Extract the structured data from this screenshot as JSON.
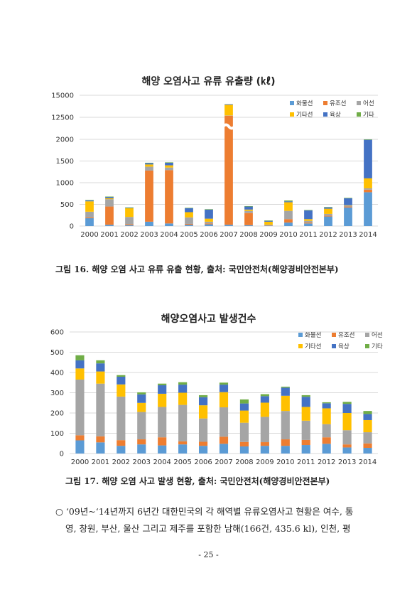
{
  "chart_data": [
    {
      "type": "bar",
      "stacked": true,
      "title": "해양 오염사고 유류 유출량 (㎘)",
      "categories": [
        "2000",
        "2001",
        "2002",
        "2003",
        "2004",
        "2005",
        "2006",
        "2007",
        "2008",
        "2009",
        "2010",
        "2011",
        "2012",
        "2013",
        "2014"
      ],
      "ylim": [
        0,
        15000
      ],
      "y_ticks": [
        0,
        500,
        1000,
        1500,
        2000,
        12500,
        15000
      ],
      "y_tick_labels": [
        "0",
        "500",
        "1000",
        "1500",
        "2000",
        "12500",
        "15000"
      ],
      "axis_break": {
        "between": [
          2000,
          12500
        ]
      },
      "grid": true,
      "legend_position": "top-right",
      "series": [
        {
          "name": "화물선",
          "color": "#5b9bd5",
          "values": [
            180,
            30,
            20,
            100,
            60,
            30,
            40,
            30,
            20,
            10,
            80,
            60,
            220,
            430,
            780
          ]
        },
        {
          "name": "유조선",
          "color": "#ed7d31",
          "values": [
            20,
            420,
            20,
            1180,
            1230,
            20,
            20,
            12650,
            280,
            10,
            80,
            20,
            20,
            20,
            60
          ]
        },
        {
          "name": "어선",
          "color": "#a5a5a5",
          "values": [
            130,
            170,
            170,
            90,
            60,
            150,
            40,
            30,
            50,
            10,
            190,
            40,
            40,
            20,
            30
          ]
        },
        {
          "name": "기타선",
          "color": "#ffc000",
          "values": [
            240,
            20,
            200,
            50,
            50,
            120,
            70,
            1200,
            30,
            70,
            200,
            40,
            120,
            10,
            230
          ]
        },
        {
          "name": "육상",
          "color": "#4472c4",
          "values": [
            20,
            30,
            10,
            30,
            60,
            90,
            210,
            70,
            70,
            20,
            20,
            200,
            30,
            160,
            890
          ]
        },
        {
          "name": "기타",
          "color": "#70ad47",
          "values": [
            10,
            10,
            10,
            10,
            10,
            10,
            10,
            10,
            10,
            10,
            20,
            10,
            10,
            10,
            10
          ]
        }
      ]
    },
    {
      "type": "bar",
      "stacked": true,
      "title": "해양오염사고 발생건수",
      "categories": [
        "2000",
        "2001",
        "2002",
        "2003",
        "2004",
        "2005",
        "2006",
        "2007",
        "2008",
        "2009",
        "2010",
        "2011",
        "2012",
        "2013",
        "2014"
      ],
      "ylim": [
        0,
        600
      ],
      "y_ticks": [
        0,
        100,
        200,
        300,
        400,
        500,
        600
      ],
      "y_tick_labels": [
        "0",
        "100",
        "200",
        "300",
        "400",
        "500",
        "600"
      ],
      "grid": true,
      "legend_position": "top-right",
      "series": [
        {
          "name": "화물선",
          "color": "#5b9bd5",
          "values": [
            65,
            55,
            38,
            45,
            40,
            45,
            38,
            48,
            35,
            38,
            38,
            42,
            48,
            30,
            28
          ]
        },
        {
          "name": "유조선",
          "color": "#ed7d31",
          "values": [
            25,
            30,
            28,
            25,
            40,
            15,
            20,
            35,
            22,
            18,
            32,
            25,
            32,
            15,
            22
          ]
        },
        {
          "name": "어선",
          "color": "#a5a5a5",
          "values": [
            275,
            260,
            215,
            135,
            150,
            180,
            115,
            145,
            95,
            125,
            140,
            95,
            65,
            70,
            55
          ]
        },
        {
          "name": "기타선",
          "color": "#ffc000",
          "values": [
            55,
            60,
            60,
            45,
            65,
            60,
            65,
            75,
            60,
            70,
            75,
            68,
            78,
            85,
            60
          ]
        },
        {
          "name": "육상",
          "color": "#4472c4",
          "values": [
            40,
            40,
            38,
            42,
            42,
            40,
            40,
            37,
            35,
            32,
            40,
            50,
            25,
            45,
            30
          ]
        },
        {
          "name": "기타",
          "color": "#70ad47",
          "values": [
            25,
            15,
            8,
            10,
            8,
            12,
            10,
            10,
            20,
            10,
            5,
            8,
            5,
            10,
            15
          ]
        }
      ]
    }
  ],
  "captions": {
    "figure16": "그림 16. 해양 오염 사고 유류 유출 현황, 출처: 국민안전처(해양경비안전본부)",
    "figure17": "그림 17. 해양 오염 사고 발생 현황, 출처: 국민안전처(해양경비안전본부)"
  },
  "body": {
    "bullet": "○",
    "line1": "‘09년~‘14년까지 6년간 대한민국의 각 해역별 유류오염사고 현황은 여수, 통",
    "line2": "영, 창원, 부산, 울산 그리고 제주를 포함한 남해(166건, 435.6 kl), 인천, 평"
  },
  "page_number": "- 25 -"
}
